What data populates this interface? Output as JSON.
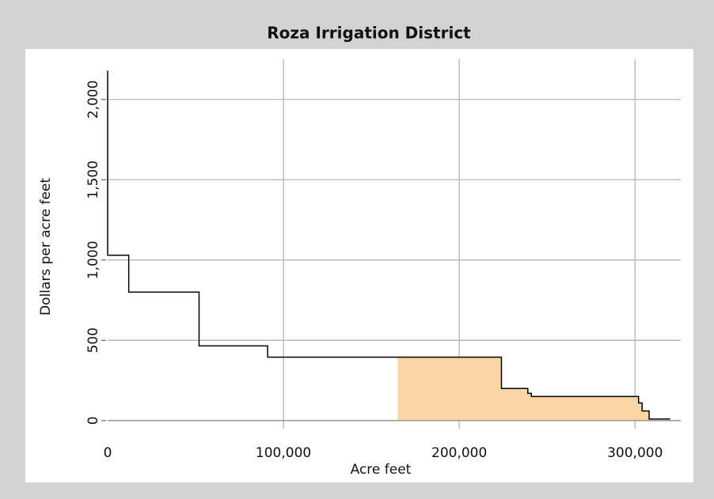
{
  "chart_data": {
    "type": "step",
    "title": "Roza Irrigation District",
    "x_label": "Acre feet",
    "y_label": "Dollars per acre feet",
    "x": [
      0,
      0,
      12000,
      52000,
      91000,
      224000,
      239000,
      241000,
      302000,
      304000,
      308000,
      320000
    ],
    "values": [
      2180,
      1030,
      800,
      465,
      395,
      200,
      170,
      150,
      110,
      60,
      10,
      10
    ],
    "color": "#000000",
    "shaded_region": {
      "xmin": 165000,
      "xmax": 308000,
      "color": "#fbd5a5"
    },
    "xlim": [
      0,
      326000
    ],
    "ylim": [
      -50,
      2250
    ],
    "xticks": [
      0,
      {
        "value": 100000,
        "label": "100,000"
      },
      {
        "value": 200000,
        "label": "200,000"
      },
      {
        "value": 300000,
        "label": "300,000"
      }
    ],
    "yticks": [
      0,
      500,
      {
        "value": 1000,
        "label": "1,000"
      },
      {
        "value": 1500,
        "label": "1,500"
      },
      {
        "value": 2000,
        "label": "2,000"
      }
    ],
    "grid": true
  }
}
